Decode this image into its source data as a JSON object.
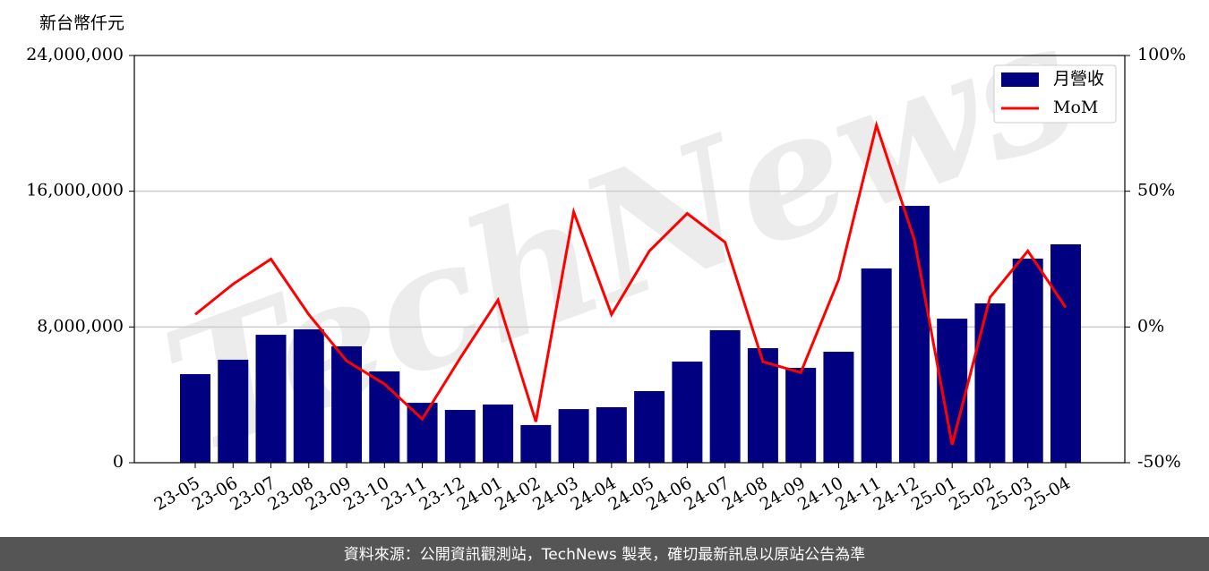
{
  "chart_data": {
    "type": "bar",
    "y_axis_label": "新台幣仟元",
    "watermark": "TechNews",
    "footer": "資料來源：公開資訊觀測站，TechNews 製表，確切最新訊息以原站公告為準",
    "categories": [
      "23-05",
      "23-06",
      "23-07",
      "23-08",
      "23-09",
      "23-10",
      "23-11",
      "23-12",
      "24-01",
      "24-02",
      "24-03",
      "24-04",
      "24-05",
      "24-06",
      "24-07",
      "24-08",
      "24-09",
      "24-10",
      "24-11",
      "24-12",
      "25-01",
      "25-02",
      "25-03",
      "25-04"
    ],
    "series": [
      {
        "name": "月營收",
        "type": "bar",
        "color": "#000080",
        "values": [
          5220000,
          6070000,
          7540000,
          7860000,
          6860000,
          5380000,
          3530000,
          3110000,
          3430000,
          2220000,
          3160000,
          3270000,
          4220000,
          5960000,
          7810000,
          6750000,
          5590000,
          6540000,
          11450000,
          15140000,
          8490000,
          9390000,
          12030000,
          12870000
        ]
      },
      {
        "name": "MoM",
        "type": "line",
        "axis": "y2",
        "color": "#ff0000",
        "values": [
          4.6,
          15.8,
          25,
          4.6,
          -12.5,
          -21,
          -33.9,
          -11.5,
          9.9,
          -34.9,
          42.4,
          4.6,
          28,
          41.8,
          31.2,
          -12.8,
          -16.8,
          17.4,
          74.3,
          32.2,
          -43.4,
          10.9,
          28,
          7.2
        ]
      }
    ],
    "ylim": [
      0,
      24000000
    ],
    "yticks": [
      0,
      {
        "value": 8000000,
        "label": "8,000,000"
      },
      {
        "value": 16000000,
        "label": "16,000,000"
      },
      {
        "value": 24000000,
        "label": "24,000,000"
      }
    ],
    "y2lim": [
      -50,
      100
    ],
    "y2ticks": [
      {
        "value": -50,
        "label": "-50%"
      },
      {
        "value": 0,
        "label": "0%"
      },
      {
        "value": 50,
        "label": "50%"
      },
      {
        "value": 100,
        "label": "100%"
      }
    ],
    "grid": true,
    "legend": "upper right"
  }
}
